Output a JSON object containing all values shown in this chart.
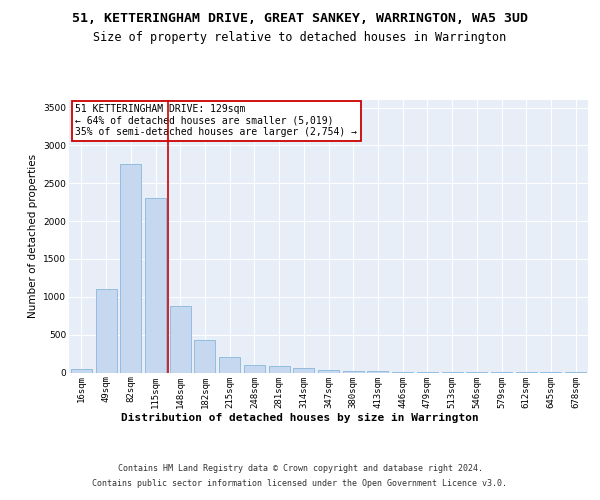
{
  "title": "51, KETTERINGHAM DRIVE, GREAT SANKEY, WARRINGTON, WA5 3UD",
  "subtitle": "Size of property relative to detached houses in Warrington",
  "xlabel": "Distribution of detached houses by size in Warrington",
  "ylabel": "Number of detached properties",
  "categories": [
    "16sqm",
    "49sqm",
    "82sqm",
    "115sqm",
    "148sqm",
    "182sqm",
    "215sqm",
    "248sqm",
    "281sqm",
    "314sqm",
    "347sqm",
    "380sqm",
    "413sqm",
    "446sqm",
    "479sqm",
    "513sqm",
    "546sqm",
    "579sqm",
    "612sqm",
    "645sqm",
    "678sqm"
  ],
  "values": [
    50,
    1100,
    2750,
    2300,
    880,
    430,
    200,
    100,
    80,
    55,
    30,
    20,
    15,
    8,
    5,
    3,
    2,
    2,
    1,
    1,
    1
  ],
  "bar_color": "#c5d8f0",
  "bar_edgecolor": "#7aadd4",
  "background_color": "#e8eef8",
  "red_line_x": 3.5,
  "annotation_text": "51 KETTERINGHAM DRIVE: 129sqm\n← 64% of detached houses are smaller (5,019)\n35% of semi-detached houses are larger (2,754) →",
  "annotation_box_color": "#ffffff",
  "annotation_box_edgecolor": "#cc0000",
  "ylim": [
    0,
    3600
  ],
  "yticks": [
    0,
    500,
    1000,
    1500,
    2000,
    2500,
    3000,
    3500
  ],
  "footer_line1": "Contains HM Land Registry data © Crown copyright and database right 2024.",
  "footer_line2": "Contains public sector information licensed under the Open Government Licence v3.0.",
  "title_fontsize": 9.5,
  "subtitle_fontsize": 8.5,
  "ylabel_fontsize": 7.5,
  "xlabel_fontsize": 8,
  "tick_fontsize": 6.5,
  "annotation_fontsize": 7,
  "footer_fontsize": 6
}
